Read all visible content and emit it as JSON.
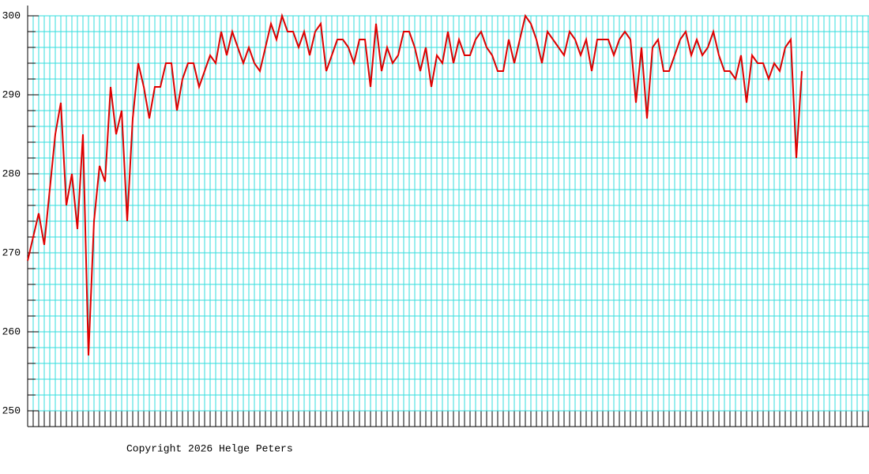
{
  "chart_data": {
    "type": "line",
    "values": [
      269,
      272,
      275,
      271,
      278,
      285,
      289,
      276,
      280,
      273,
      285,
      257,
      274,
      281,
      279,
      291,
      285,
      288,
      274,
      287,
      294,
      291,
      287,
      291,
      291,
      294,
      294,
      288,
      292,
      294,
      294,
      291,
      293,
      295,
      294,
      298,
      295,
      298,
      296,
      294,
      296,
      294,
      293,
      296,
      299,
      297,
      300,
      298,
      298,
      296,
      298,
      295,
      298,
      299,
      293,
      295,
      297,
      297,
      296,
      294,
      297,
      297,
      291,
      299,
      293,
      296,
      294,
      295,
      298,
      298,
      296,
      293,
      296,
      291,
      295,
      294,
      298,
      294,
      297,
      295,
      295,
      297,
      298,
      296,
      295,
      293,
      293,
      297,
      294,
      297,
      300,
      299,
      297,
      294,
      298,
      297,
      296,
      295,
      298,
      297,
      295,
      297,
      293,
      297,
      297,
      297,
      295,
      297,
      298,
      297,
      289,
      296,
      287,
      296,
      297,
      293,
      293,
      295,
      297,
      298,
      295,
      297,
      295,
      296,
      298,
      295,
      293,
      293,
      292,
      295,
      289,
      295,
      294,
      294,
      292,
      294,
      293,
      296,
      297,
      282,
      293
    ],
    "color": "#dd0000",
    "grid_color": "#33dddd",
    "ylim": [
      248,
      301.3
    ],
    "yticks": [
      250,
      260,
      270,
      280,
      290,
      300
    ],
    "ygrid": [
      250,
      252,
      254,
      256,
      258,
      260,
      262,
      264,
      266,
      268,
      270,
      272,
      274,
      276,
      278,
      280,
      282,
      284,
      286,
      288,
      290,
      292,
      294,
      296,
      298,
      300
    ],
    "grid": true,
    "footer": "Copyright 2026 Helge Peters"
  }
}
